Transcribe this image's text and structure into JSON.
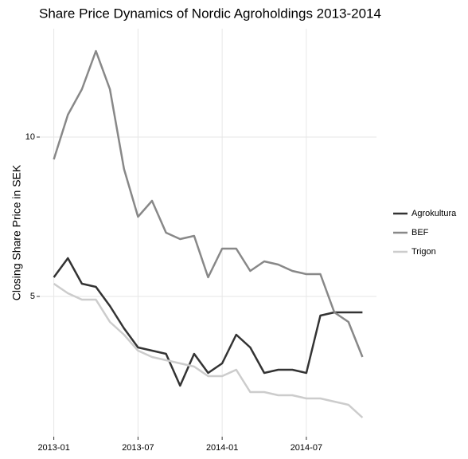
{
  "chart_data": {
    "type": "line",
    "title": "Share Price Dynamics of Nordic Agroholdings 2013-2014",
    "y_label": "Closing Share Price in SEK",
    "x": [
      "2013-01",
      "2013-02",
      "2013-03",
      "2013-04",
      "2013-05",
      "2013-06",
      "2013-07",
      "2013-08",
      "2013-09",
      "2013-10",
      "2013-11",
      "2013-12",
      "2014-01",
      "2014-02",
      "2014-03",
      "2014-04",
      "2014-05",
      "2014-06",
      "2014-07",
      "2014-08",
      "2014-09",
      "2014-10",
      "2014-11"
    ],
    "series": [
      {
        "name": "Agrokultura",
        "color": "#333333",
        "values": [
          5.6,
          6.2,
          5.4,
          5.3,
          4.7,
          4.0,
          3.4,
          3.3,
          3.2,
          2.2,
          3.2,
          2.6,
          2.9,
          3.8,
          3.4,
          2.6,
          2.7,
          2.7,
          2.6,
          4.4,
          4.5,
          4.5,
          4.5
        ]
      },
      {
        "name": "BEF",
        "color": "#888888",
        "values": [
          9.3,
          10.7,
          11.5,
          12.7,
          11.5,
          9.0,
          7.5,
          8.0,
          7.0,
          6.8,
          6.9,
          5.6,
          6.5,
          6.5,
          5.8,
          6.1,
          6.0,
          5.8,
          5.7,
          5.7,
          4.5,
          4.2,
          3.1
        ]
      },
      {
        "name": "Trigon",
        "color": "#cccccc",
        "values": [
          5.4,
          5.1,
          4.9,
          4.9,
          4.2,
          3.8,
          3.3,
          3.1,
          3.0,
          2.9,
          2.8,
          2.5,
          2.5,
          2.7,
          2.0,
          2.0,
          1.9,
          1.9,
          1.8,
          1.8,
          1.7,
          1.6,
          1.2
        ]
      }
    ],
    "xlim": [
      "2012-12",
      "2014-12"
    ],
    "xticks": [
      "2013-01",
      "2013-07",
      "2014-01",
      "2014-07"
    ],
    "ylim": [
      0.6,
      13.4
    ],
    "yticks": [
      5,
      10
    ],
    "grid": true,
    "legend_position": "right"
  }
}
